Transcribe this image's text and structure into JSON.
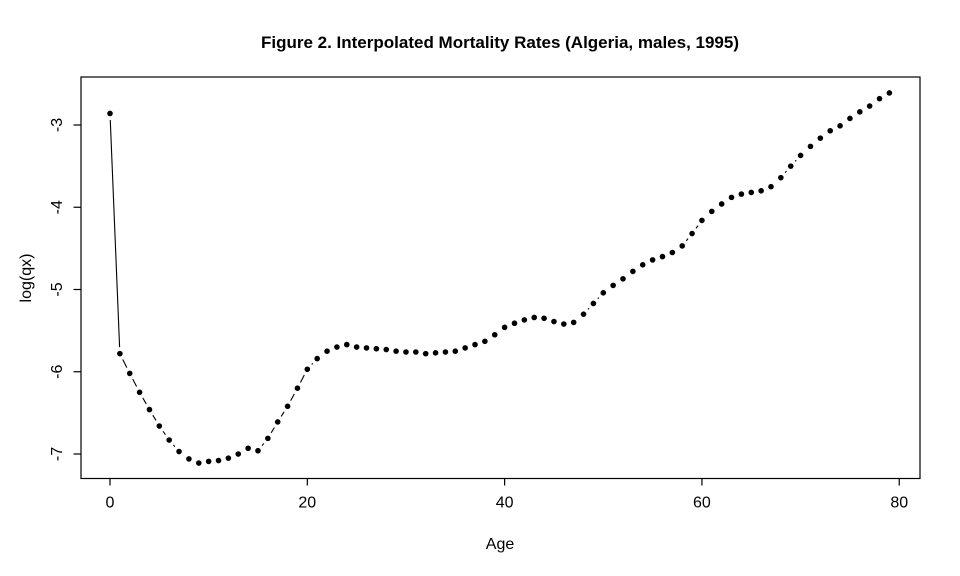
{
  "chart_data": {
    "type": "line",
    "style": "R base plot, type='b': black point markers with short connecting segments, no grid, boxed plot area",
    "title": "Figure 2. Interpolated Mortality Rates (Algeria, males, 1995)",
    "xlabel": "Age",
    "ylabel": "log(qx)",
    "xlim": [
      -3,
      82
    ],
    "ylim": [
      -7.3,
      -2.42
    ],
    "xticks": [
      0,
      20,
      40,
      60,
      80
    ],
    "yticks": [
      -3,
      -4,
      -5,
      -6,
      -7
    ],
    "grid": false,
    "legend": "none",
    "marker_color": "#000000",
    "line_color": "#000000",
    "background": "#ffffff",
    "series": [
      {
        "name": "Interpolated log mortality rate, Algeria males 1995",
        "x": [
          0,
          1,
          2,
          3,
          4,
          5,
          6,
          7,
          8,
          9,
          10,
          11,
          12,
          13,
          14,
          15,
          16,
          17,
          18,
          19,
          20,
          21,
          22,
          23,
          24,
          25,
          26,
          27,
          28,
          29,
          30,
          31,
          32,
          33,
          34,
          35,
          36,
          37,
          38,
          39,
          40,
          41,
          42,
          43,
          44,
          45,
          46,
          47,
          48,
          49,
          50,
          51,
          52,
          53,
          54,
          55,
          56,
          57,
          58,
          59,
          60,
          61,
          62,
          63,
          64,
          65,
          66,
          67,
          68,
          69,
          70,
          71,
          72,
          73,
          74,
          75,
          76,
          77,
          78,
          79
        ],
        "values": [
          -2.86,
          -5.78,
          -6.02,
          -6.25,
          -6.46,
          -6.66,
          -6.83,
          -6.97,
          -7.06,
          -7.11,
          -7.09,
          -7.08,
          -7.05,
          -7.0,
          -6.93,
          -6.96,
          -6.81,
          -6.61,
          -6.42,
          -6.2,
          -5.97,
          -5.84,
          -5.75,
          -5.7,
          -5.67,
          -5.7,
          -5.71,
          -5.72,
          -5.73,
          -5.75,
          -5.76,
          -5.76,
          -5.78,
          -5.77,
          -5.76,
          -5.75,
          -5.71,
          -5.67,
          -5.63,
          -5.55,
          -5.46,
          -5.41,
          -5.37,
          -5.34,
          -5.35,
          -5.39,
          -5.42,
          -5.4,
          -5.3,
          -5.17,
          -5.04,
          -4.95,
          -4.87,
          -4.78,
          -4.7,
          -4.64,
          -4.6,
          -4.55,
          -4.47,
          -4.32,
          -4.16,
          -4.05,
          -3.96,
          -3.88,
          -3.84,
          -3.82,
          -3.8,
          -3.75,
          -3.64,
          -3.5,
          -3.37,
          -3.26,
          -3.16,
          -3.07,
          -3.01,
          -2.92,
          -2.84,
          -2.77,
          -2.68,
          -2.61
        ]
      }
    ]
  }
}
